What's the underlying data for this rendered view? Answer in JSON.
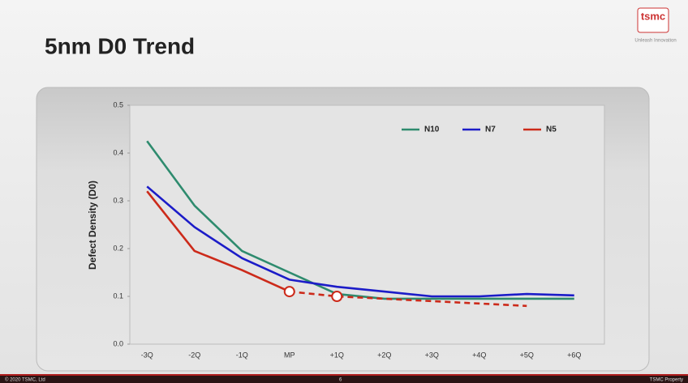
{
  "header": {
    "title": "5nm D0 Trend",
    "logo": "tsmc",
    "tagline": "Unleash Innovation"
  },
  "chart_data": {
    "type": "line",
    "y_label": "Defect Density (D0)",
    "categories": [
      "-3Q",
      "-2Q",
      "-1Q",
      "MP",
      "+1Q",
      "+2Q",
      "+3Q",
      "+4Q",
      "+5Q",
      "+6Q"
    ],
    "series": [
      {
        "name": "N10",
        "color": "#2e8b6e",
        "values": [
          0.425,
          0.29,
          0.195,
          0.15,
          0.105,
          0.095,
          0.095,
          0.095,
          0.095,
          0.095
        ]
      },
      {
        "name": "N7",
        "color": "#1c1cc8",
        "values": [
          0.33,
          0.245,
          0.18,
          0.135,
          0.12,
          0.11,
          0.1,
          0.1,
          0.105,
          0.102
        ]
      },
      {
        "name": "N5",
        "color": "#cc2a1a",
        "values": [
          0.32,
          0.195,
          0.155,
          0.11,
          0.1,
          0.095,
          0.09,
          0.085,
          0.08,
          null
        ],
        "dash_from": 3,
        "marker_indices": [
          3,
          4
        ]
      }
    ],
    "ylim": [
      0,
      0.5
    ],
    "yticks": [
      {
        "value": 0,
        "label": "0.0"
      },
      0.1,
      0.2,
      0.3,
      0.4,
      0.5
    ],
    "legend": "upper right"
  },
  "footer": {
    "copyright": "© 2020 TSMC, Ltd",
    "page": "6",
    "property": "TSMC Property"
  }
}
